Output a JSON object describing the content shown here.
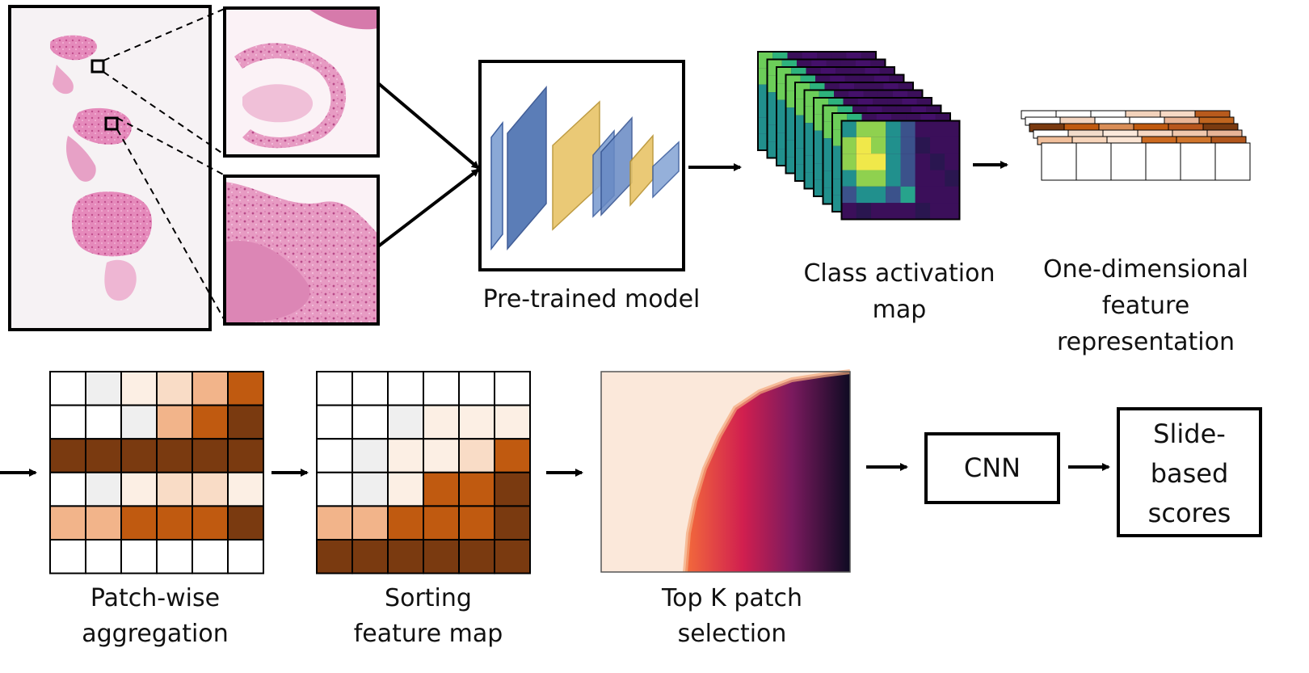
{
  "labels": {
    "pretrained": "Pre-trained model",
    "cam_line1": "Class activation",
    "cam_line2": "map",
    "onedim_line1": "One-dimensional",
    "onedim_line2": "feature",
    "onedim_line3": "representation",
    "patchwise_line1": "Patch-wise",
    "patchwise_line2": "aggregation",
    "sorting_line1": "Sorting",
    "sorting_line2": "feature map",
    "topk_line1": "Top K patch",
    "topk_line2": "selection",
    "cnn": "CNN",
    "slide_line1": "Slide-",
    "slide_line2": "based",
    "slide_line3": "scores"
  },
  "colors": {
    "tissue": "#e07eb0",
    "tissue_dark": "#c75691",
    "slide_bg": "#f4f0f2",
    "conv_blue": "#4a6fb0",
    "conv_yellow": "#e8c468",
    "brown_dark": "#7a3a10",
    "brown_mid": "#c05a10",
    "peach": "#f2b48a",
    "peach_light": "#f9dcc6",
    "cream": "#fcefe4",
    "gray_cell": "#efefef",
    "cam_purple": "#3b0f5a",
    "cam_yellow": "#f0e84a"
  },
  "grids": {
    "patchwise": [
      [
        0,
        1,
        2,
        3,
        4,
        5
      ],
      [
        0,
        0,
        1,
        4,
        6,
        7
      ],
      [
        7,
        7,
        7,
        7,
        7,
        7
      ],
      [
        0,
        1,
        2,
        3,
        3,
        2
      ],
      [
        4,
        4,
        5,
        6,
        6,
        7
      ],
      [
        0,
        0,
        0,
        0,
        0,
        0
      ]
    ],
    "sorting": [
      [
        0,
        0,
        0,
        0,
        0,
        0
      ],
      [
        0,
        0,
        1,
        2,
        2,
        2
      ],
      [
        0,
        1,
        2,
        2,
        3,
        6
      ],
      [
        0,
        1,
        2,
        5,
        6,
        7
      ],
      [
        4,
        4,
        5,
        6,
        6,
        7
      ],
      [
        7,
        7,
        7,
        7,
        7,
        7
      ]
    ]
  }
}
